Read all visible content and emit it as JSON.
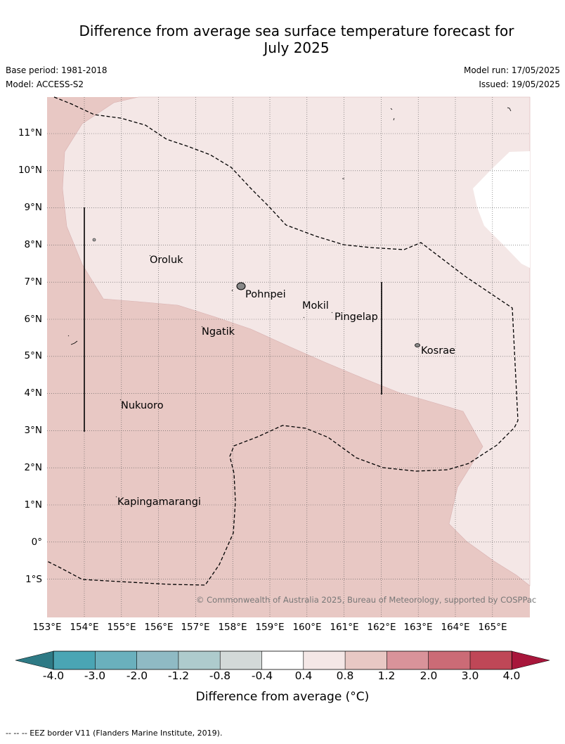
{
  "header": {
    "title_line1": "Difference from average sea surface temperature forecast for",
    "title_line2": "July 2025",
    "base_period": "Base period: 1981-2018",
    "model": "Model: ACCESS-S2",
    "model_run": "Model run: 17/05/2025",
    "issued": "Issued: 19/05/2025"
  },
  "map": {
    "lat_labels": [
      "11°N",
      "10°N",
      "9°N",
      "8°N",
      "7°N",
      "6°N",
      "5°N",
      "4°N",
      "3°N",
      "2°N",
      "1°N",
      "0°",
      "1°S"
    ],
    "lon_labels": [
      "153°E",
      "154°E",
      "155°E",
      "156°E",
      "157°E",
      "158°E",
      "159°E",
      "160°E",
      "161°E",
      "162°E",
      "163°E",
      "164°E",
      "165°E"
    ],
    "places": [
      "Oroluk",
      "Pohnpei",
      "Mokil",
      "Pingelap",
      "Ngatik",
      "Kosrae",
      "Nukuoro",
      "Kapingamarangi"
    ],
    "copyright": "© Commonwealth of Australia 2025, Bureau of Meteorology, supported by COSPPac",
    "colors": {
      "band_0p8_1p2": "#e8c8c4",
      "band_0p4_0p8": "#f4e7e6",
      "band_below_0p4": "#ffffff"
    }
  },
  "colorbar": {
    "ticks": [
      "-4.0",
      "-3.0",
      "-2.0",
      "-1.2",
      "-0.8",
      "-0.4",
      "0.4",
      "0.8",
      "1.2",
      "2.0",
      "3.0",
      "4.0"
    ],
    "colors": [
      "#2e7a85",
      "#4aa5b4",
      "#6ab0bd",
      "#8fbac4",
      "#aecbcd",
      "#d3d9d8",
      "#ffffff",
      "#f4e7e6",
      "#e8c8c4",
      "#d9939a",
      "#cb6b76",
      "#bf4757",
      "#a8163b"
    ],
    "title": "Difference from average (°C)"
  },
  "footer": {
    "legend": "--  --  -- EEZ border V11 (Flanders Marine Institute, 2019)."
  }
}
